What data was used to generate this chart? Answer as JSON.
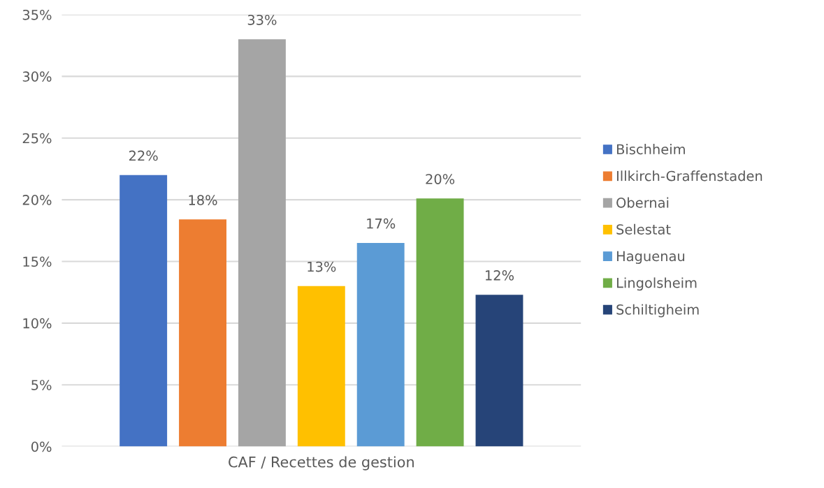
{
  "chart_data": {
    "type": "bar",
    "categories": [
      "CAF / Recettes de gestion"
    ],
    "series": [
      {
        "name": "Bischheim",
        "color": "#4472c4",
        "values": [
          22.0
        ],
        "value_labels": [
          "22%"
        ]
      },
      {
        "name": "Illkirch-Graffenstaden",
        "color": "#ed7d31",
        "values": [
          18.4
        ],
        "value_labels": [
          "18%"
        ]
      },
      {
        "name": "Obernai",
        "color": "#a5a5a5",
        "values": [
          33.0
        ],
        "value_labels": [
          "33%"
        ]
      },
      {
        "name": "Selestat",
        "color": "#ffc000",
        "values": [
          13.0
        ],
        "value_labels": [
          "13%"
        ]
      },
      {
        "name": "Haguenau",
        "color": "#5b9bd5",
        "values": [
          16.5
        ],
        "value_labels": [
          "17%"
        ]
      },
      {
        "name": "Lingolsheim",
        "color": "#70ad47",
        "values": [
          20.1
        ],
        "value_labels": [
          "20%"
        ]
      },
      {
        "name": "Schiltigheim",
        "color": "#264478",
        "values": [
          12.3
        ],
        "value_labels": [
          "12%"
        ]
      }
    ],
    "ylim": [
      0,
      35
    ],
    "yticks": [
      {
        "value": 0,
        "label": "0%"
      },
      {
        "value": 5,
        "label": "5%"
      },
      {
        "value": 10,
        "label": "10%"
      },
      {
        "value": 15,
        "label": "15%"
      },
      {
        "value": 20,
        "label": "20%"
      },
      {
        "value": 25,
        "label": "25%"
      },
      {
        "value": 30,
        "label": "30%"
      },
      {
        "value": 35,
        "label": "35%"
      }
    ],
    "grid": "y",
    "legend": "right"
  }
}
